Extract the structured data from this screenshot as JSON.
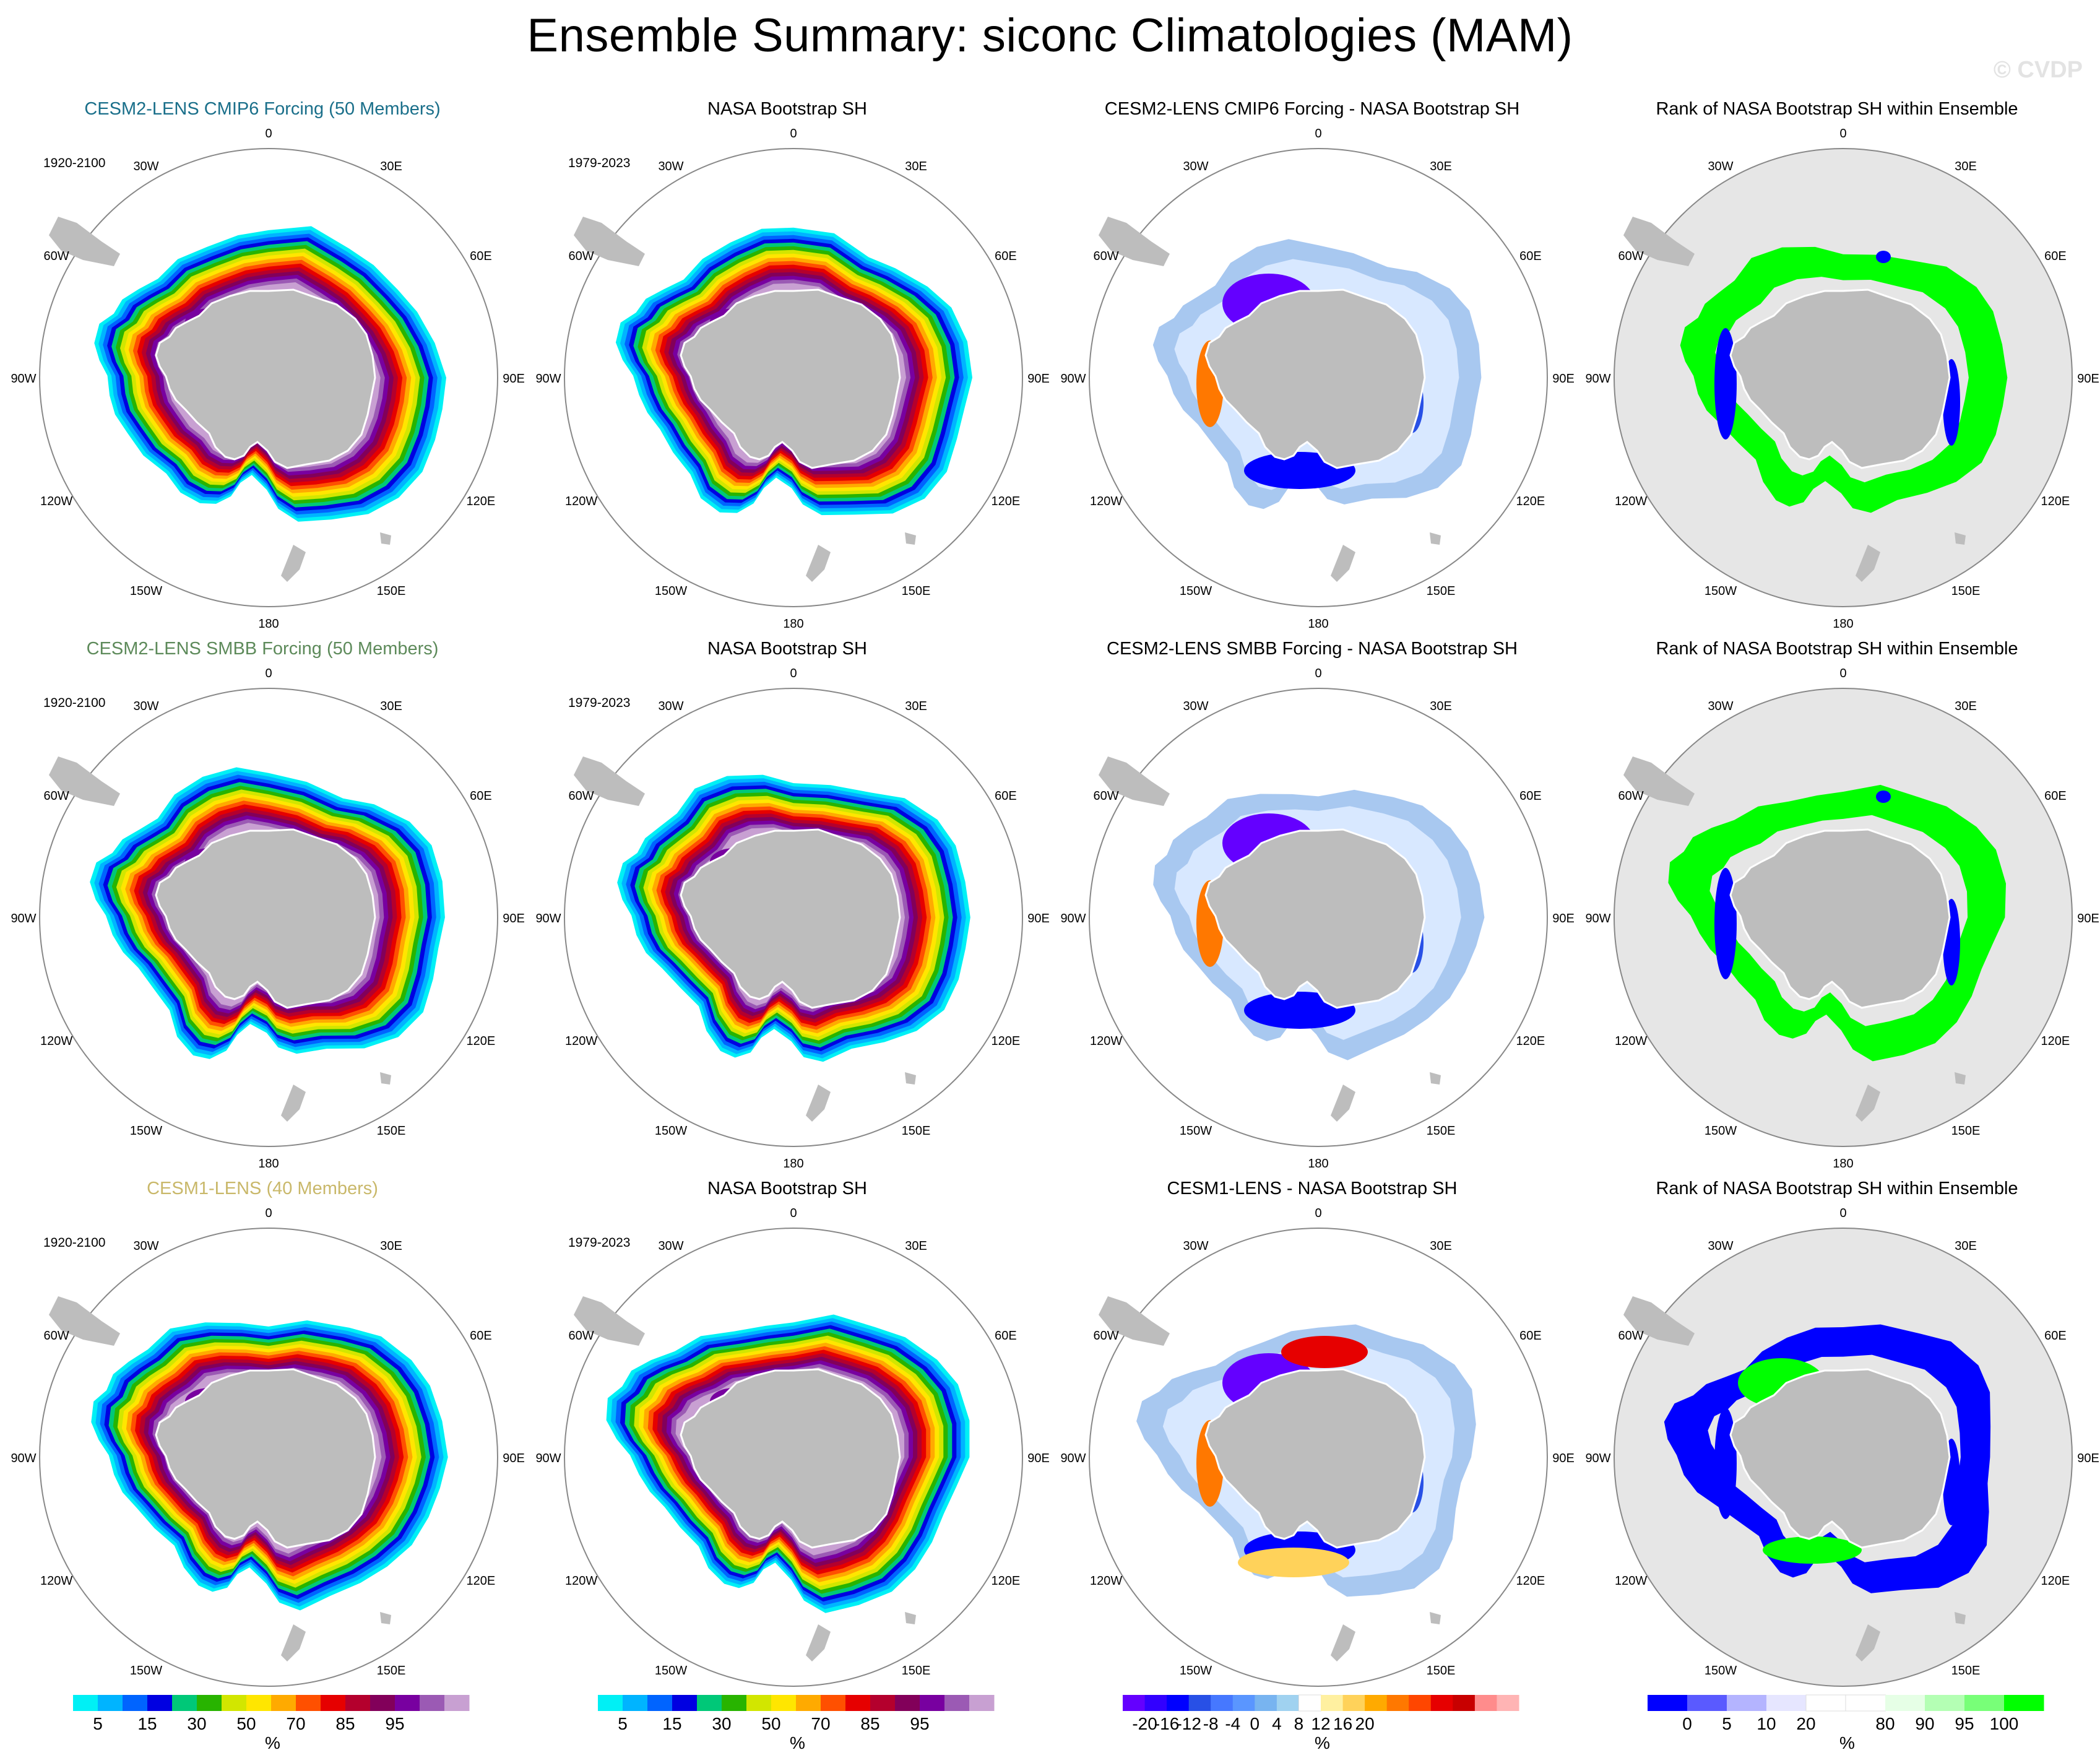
{
  "title": "Ensemble Summary: siconc Climatologies (MAM)",
  "watermark": "© CVDP",
  "columns": [
    {
      "type": "climo"
    },
    {
      "type": "climo"
    },
    {
      "type": "diff"
    },
    {
      "type": "rank"
    }
  ],
  "rows": [
    {
      "panels": [
        {
          "title": "CESM2-LENS CMIP6 Forcing (50 Members)",
          "title_color": "#1a6f8a",
          "period": "1920-2100"
        },
        {
          "title": "NASA Bootstrap SH",
          "title_color": "#000000",
          "period": "1979-2023"
        },
        {
          "title": "CESM2-LENS CMIP6 Forcing - NASA Bootstrap SH",
          "title_color": "#000000",
          "period": ""
        },
        {
          "title": "Rank of NASA Bootstrap SH within Ensemble",
          "title_color": "#000000",
          "period": ""
        }
      ]
    },
    {
      "panels": [
        {
          "title": "CESM2-LENS SMBB Forcing (50 Members)",
          "title_color": "#5d8a5a",
          "period": "1920-2100"
        },
        {
          "title": "NASA Bootstrap SH",
          "title_color": "#000000",
          "period": "1979-2023"
        },
        {
          "title": "CESM2-LENS SMBB Forcing - NASA Bootstrap SH",
          "title_color": "#000000",
          "period": ""
        },
        {
          "title": "Rank of NASA Bootstrap SH within Ensemble",
          "title_color": "#000000",
          "period": ""
        }
      ]
    },
    {
      "panels": [
        {
          "title": "CESM1-LENS (40 Members)",
          "title_color": "#c9b86a",
          "period": "1920-2100"
        },
        {
          "title": "NASA Bootstrap SH",
          "title_color": "#000000",
          "period": "1979-2023"
        },
        {
          "title": "CESM1-LENS - NASA Bootstrap SH",
          "title_color": "#000000",
          "period": ""
        },
        {
          "title": "Rank of NASA Bootstrap SH within Ensemble",
          "title_color": "#000000",
          "period": ""
        }
      ]
    }
  ],
  "longitude_labels": [
    "0",
    "30E",
    "60E",
    "90E",
    "120E",
    "150E",
    "180",
    "150W",
    "120W",
    "90W",
    "60W",
    "30W"
  ],
  "colorbars": {
    "climo": {
      "colors": [
        "#00f0f5",
        "#00b4ff",
        "#0064ff",
        "#0000e1",
        "#00c878",
        "#28b400",
        "#d2e600",
        "#ffe600",
        "#ffaa00",
        "#ff5000",
        "#e60000",
        "#b4002d",
        "#82005a",
        "#7800a0",
        "#9b5ab4",
        "#c8a0d2"
      ],
      "labels": [
        "5",
        "15",
        "30",
        "50",
        "70",
        "85",
        "95"
      ],
      "label_positions": [
        1,
        3,
        5,
        7,
        9,
        11,
        13
      ],
      "unit": "%"
    },
    "diff": {
      "colors": [
        "#6400ff",
        "#3200ff",
        "#0000ff",
        "#2850e6",
        "#4678ff",
        "#5a96ff",
        "#78b4f0",
        "#a0d2f0",
        "#ffffff",
        "#fff0a0",
        "#ffd25a",
        "#ffaa00",
        "#ff7800",
        "#ff4600",
        "#e60000",
        "#c80000",
        "#ff8c8c",
        "#ffb4b4"
      ],
      "labels": [
        "-20",
        "-16",
        "-12",
        "-8",
        "-4",
        "0",
        "4",
        "8",
        "12",
        "16",
        "20"
      ],
      "label_positions": [
        1,
        2,
        3,
        4,
        5,
        6,
        7,
        8,
        9,
        10,
        11
      ],
      "unit": "%"
    },
    "rank": {
      "colors": [
        "#0000ff",
        "#5a5aff",
        "#b4b4ff",
        "#e6e6ff",
        "#ffffff",
        "#ffffff",
        "#e6ffe6",
        "#b4ffb4",
        "#78ff78",
        "#00ff00"
      ],
      "labels": [
        "0",
        "5",
        "10",
        "20",
        "80",
        "90",
        "95",
        "100"
      ],
      "label_positions": [
        1,
        2,
        3,
        4,
        6,
        7,
        8,
        9
      ],
      "unit": "%"
    }
  }
}
